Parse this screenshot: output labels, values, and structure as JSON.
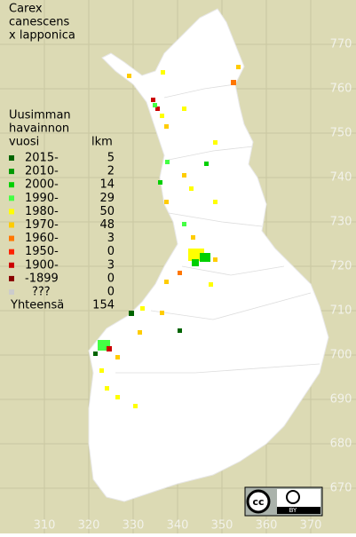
{
  "title": [
    "Carex",
    "canescens",
    "x lapponica"
  ],
  "legend": {
    "header": [
      "Uusimman",
      "havainnon",
      "vuosi"
    ],
    "count_header": "lkm",
    "rows": [
      {
        "label": "2015-",
        "count": "5",
        "color": "#006400"
      },
      {
        "label": "2010-",
        "count": "2",
        "color": "#009900"
      },
      {
        "label": "2000-",
        "count": "14",
        "color": "#00d000"
      },
      {
        "label": "1990-",
        "count": "29",
        "color": "#44ff44"
      },
      {
        "label": "1980-",
        "count": "50",
        "color": "#ffff00"
      },
      {
        "label": "1970-",
        "count": "48",
        "color": "#ffcc00"
      },
      {
        "label": "1960-",
        "count": "3",
        "color": "#ff7700"
      },
      {
        "label": "1950-",
        "count": "0",
        "color": "#ff2200"
      },
      {
        "label": "1900-",
        "count": "3",
        "color": "#cc0000"
      },
      {
        "label": "-1899",
        "count": "0",
        "color": "#880000"
      },
      {
        "label": "???",
        "count": "0",
        "color": "#cccccc"
      }
    ],
    "total_label": "Yhteensä",
    "total": "154"
  },
  "x_labels": [
    "310",
    "320",
    "330",
    "340",
    "350",
    "360",
    "370"
  ],
  "y_labels": [
    "770",
    "760",
    "750",
    "740",
    "730",
    "720",
    "710",
    "700",
    "690",
    "680",
    "670"
  ],
  "license": {
    "icon": "cc",
    "text": "BY"
  }
}
